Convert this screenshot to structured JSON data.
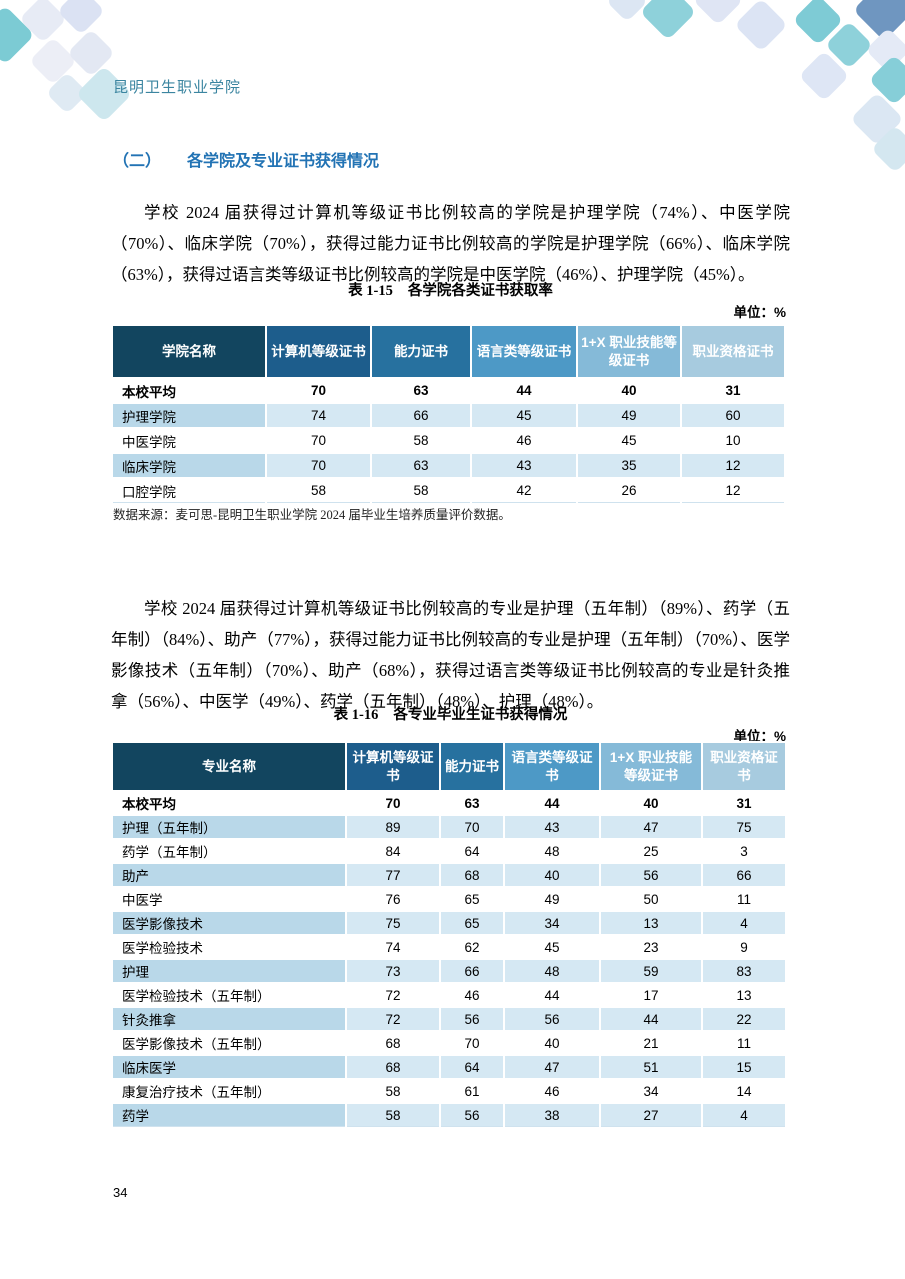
{
  "page": {
    "school_name": "昆明卫生职业学院",
    "page_number": "34"
  },
  "section": {
    "heading_number": "（二）",
    "heading_title": "各学院及专业证书获得情况"
  },
  "paragraphs": {
    "p1": "学校 2024 届获得过计算机等级证书比例较高的学院是护理学院（74%）、中医学院（70%）、临床学院（70%），获得过能力证书比例较高的学院是护理学院（66%）、临床学院（63%），获得过语言类等级证书比例较高的学院是中医学院（46%）、护理学院（45%）。",
    "p2": "学校 2024 届获得过计算机等级证书比例较高的专业是护理（五年制）（89%）、药学（五年制）（84%）、助产（77%），获得过能力证书比例较高的专业是护理（五年制）（70%）、医学影像技术（五年制）（70%）、助产（68%），获得过语言类等级证书比例较高的专业是针灸推拿（56%）、中医学（49%）、药学（五年制）（48%）、护理（48%）。"
  },
  "table1": {
    "caption_label": "表 1-15",
    "caption_title": "各学院各类证书获取率",
    "unit": "单位：%",
    "headers": [
      "学院名称",
      "计算机等级证书",
      "能力证书",
      "语言类等级证书",
      "1+X 职业技能等级证书",
      "职业资格证书"
    ],
    "rows": [
      {
        "name": "本校平均",
        "values": [
          70,
          63,
          44,
          40,
          31
        ]
      },
      {
        "name": "护理学院",
        "values": [
          74,
          66,
          45,
          49,
          60
        ]
      },
      {
        "name": "中医学院",
        "values": [
          70,
          58,
          46,
          45,
          10
        ]
      },
      {
        "name": "临床学院",
        "values": [
          70,
          63,
          43,
          35,
          12
        ]
      },
      {
        "name": "口腔学院",
        "values": [
          58,
          58,
          42,
          26,
          12
        ]
      }
    ],
    "source_note": "数据来源：麦可思-昆明卫生职业学院 2024 届毕业生培养质量评价数据。"
  },
  "table2": {
    "caption_label": "表 1-16",
    "caption_title": "各专业毕业生证书获得情况",
    "unit": "单位：%",
    "headers": [
      "专业名称",
      "计算机等级证书",
      "能力证书",
      "语言类等级证书",
      "1+X 职业技能等级证书",
      "职业资格证书"
    ],
    "rows": [
      {
        "name": "本校平均",
        "values": [
          70,
          63,
          44,
          40,
          31
        ]
      },
      {
        "name": "护理（五年制）",
        "values": [
          89,
          70,
          43,
          47,
          75
        ]
      },
      {
        "name": "药学（五年制）",
        "values": [
          84,
          64,
          48,
          25,
          3
        ]
      },
      {
        "name": "助产",
        "values": [
          77,
          68,
          40,
          56,
          66
        ]
      },
      {
        "name": "中医学",
        "values": [
          76,
          65,
          49,
          50,
          11
        ]
      },
      {
        "name": "医学影像技术",
        "values": [
          75,
          65,
          34,
          13,
          4
        ]
      },
      {
        "name": "医学检验技术",
        "values": [
          74,
          62,
          45,
          23,
          9
        ]
      },
      {
        "name": "护理",
        "values": [
          73,
          66,
          48,
          59,
          83
        ]
      },
      {
        "name": "医学检验技术（五年制）",
        "values": [
          72,
          46,
          44,
          17,
          13
        ]
      },
      {
        "name": "针灸推拿",
        "values": [
          72,
          56,
          56,
          44,
          22
        ]
      },
      {
        "name": "医学影像技术（五年制）",
        "values": [
          68,
          70,
          40,
          21,
          11
        ]
      },
      {
        "name": "临床医学",
        "values": [
          68,
          64,
          47,
          51,
          15
        ]
      },
      {
        "name": "康复治疗技术（五年制）",
        "values": [
          58,
          61,
          46,
          34,
          14
        ]
      },
      {
        "name": "药学",
        "values": [
          58,
          56,
          38,
          27,
          4
        ]
      }
    ]
  },
  "colors": {
    "header_columns": [
      "#12455f",
      "#1d5d8c",
      "#27719f",
      "#4d99c6",
      "#85bad8",
      "#a7cbdf"
    ],
    "heading_blue": "#2273b4",
    "school_name_teal": "#3b85a0",
    "shaded_name_cell": "#b9d8e9",
    "shaded_value_cell": "#d5e8f3"
  }
}
